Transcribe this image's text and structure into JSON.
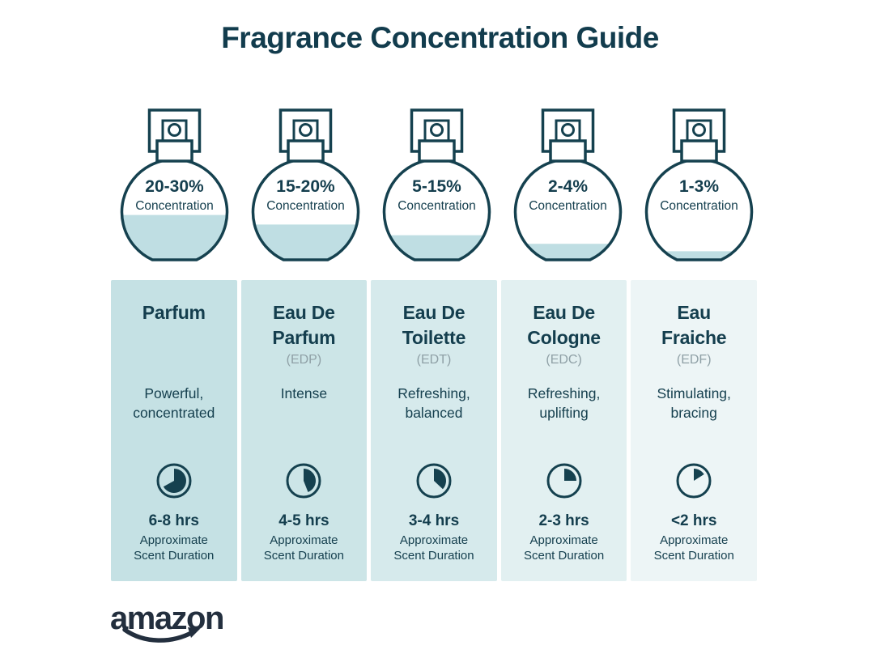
{
  "page": {
    "title": "Fragrance Concentration Guide",
    "background": "#ffffff",
    "ink_color": "#15414f",
    "title_color": "#123c4d",
    "abbr_color": "#8fa0a6"
  },
  "icons": {
    "bottle": "spray-bottle-icon",
    "duration": "clock-icon",
    "brand": "amazon-smile-arrow-icon"
  },
  "bottles": [
    {
      "percent_label": "20-30%",
      "concentration_label": "Concentration",
      "fill_pct": 42,
      "liquid_color": "#bfdee3"
    },
    {
      "percent_label": "15-20%",
      "concentration_label": "Concentration",
      "fill_pct": 33,
      "liquid_color": "#bfdee3"
    },
    {
      "percent_label": "5-15%",
      "concentration_label": "Concentration",
      "fill_pct": 23,
      "liquid_color": "#bfdee3"
    },
    {
      "percent_label": "2-4%",
      "concentration_label": "Concentration",
      "fill_pct": 15,
      "liquid_color": "#bfdee3"
    },
    {
      "percent_label": "1-3%",
      "concentration_label": "Concentration",
      "fill_pct": 8,
      "liquid_color": "#bfdee3"
    }
  ],
  "columns": [
    {
      "name": "Parfum",
      "abbr": "",
      "description": "Powerful,\nconcentrated",
      "clock_pct": 67,
      "duration": "6-8 hrs",
      "duration_caption": "Approximate\nScent Duration",
      "bg": "#c5e1e4"
    },
    {
      "name": "Eau De\nParfum",
      "abbr": "(EDP)",
      "description": "Intense",
      "clock_pct": 44,
      "duration": "4-5 hrs",
      "duration_caption": "Approximate\nScent Duration",
      "bg": "#cce5e7"
    },
    {
      "name": "Eau De\nToilette",
      "abbr": "(EDT)",
      "description": "Refreshing,\nbalanced",
      "clock_pct": 37,
      "duration": "3-4 hrs",
      "duration_caption": "Approximate\nScent Duration",
      "bg": "#d6eaec"
    },
    {
      "name": "Eau De\nCologne",
      "abbr": "(EDC)",
      "description": "Refreshing,\nuplifting",
      "clock_pct": 25,
      "duration": "2-3 hrs",
      "duration_caption": "Approximate\nScent Duration",
      "bg": "#e2f0f1"
    },
    {
      "name": "Eau\nFraiche",
      "abbr": "(EDF)",
      "description": "Stimulating,\nbracing",
      "clock_pct": 16,
      "duration": "<2 hrs",
      "duration_caption": "Approximate\nScent Duration",
      "bg": "#edf5f6"
    }
  ],
  "brand": {
    "logo_text": "amazon",
    "logo_color": "#232f3e"
  }
}
